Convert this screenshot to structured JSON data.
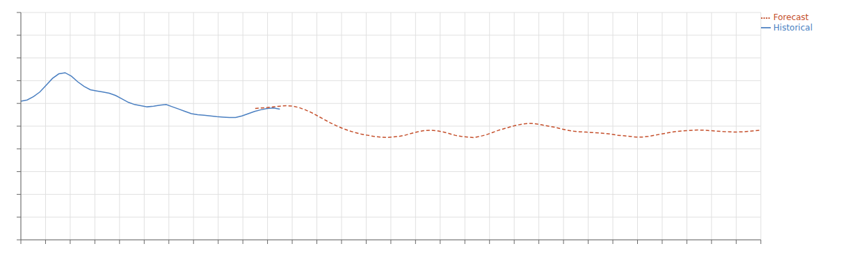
{
  "chart_data": {
    "type": "line",
    "xlim": [
      0,
      120
    ],
    "ylim": [
      0,
      10
    ],
    "xticks": [
      0,
      4,
      8,
      12,
      16,
      20,
      24,
      28,
      32,
      36,
      40,
      44,
      48,
      52,
      56,
      60,
      64,
      68,
      72,
      76,
      80,
      84,
      88,
      92,
      96,
      100,
      104,
      108,
      112,
      116,
      120
    ],
    "yticks": [
      0,
      1,
      2,
      3,
      4,
      5,
      6,
      7,
      8,
      9,
      10
    ],
    "grid": true,
    "legend": "upper right",
    "tick_labels": false,
    "series": [
      {
        "name": "Historical",
        "color": "#4a7fc1",
        "line_style": "solid",
        "x": [
          0,
          1.02439,
          2.04878,
          3.07317,
          4.09756,
          5.12195,
          6.14634,
          7.17073,
          8.19512,
          9.21951,
          10.2439,
          11.26829,
          12.29268,
          13.31707,
          14.34146,
          15.36585,
          16.39024,
          17.41463,
          18.43902,
          19.46341,
          20.4878,
          21.5122,
          22.53659,
          23.56098,
          24.58537,
          25.60976,
          26.63415,
          27.65854,
          28.68293,
          29.70732,
          30.73171,
          31.7561,
          32.78049,
          33.80488,
          34.82927,
          35.85366,
          36.87805,
          37.90244,
          38.92683,
          39.95122,
          40.97561,
          42
        ],
        "values": [
          6.1,
          6.15,
          6.3,
          6.5,
          6.8,
          7.1,
          7.3,
          7.35,
          7.2,
          6.95,
          6.75,
          6.6,
          6.55,
          6.5,
          6.45,
          6.35,
          6.2,
          6.05,
          5.95,
          5.9,
          5.85,
          5.88,
          5.92,
          5.95,
          5.85,
          5.75,
          5.65,
          5.55,
          5.5,
          5.48,
          5.45,
          5.42,
          5.4,
          5.38,
          5.38,
          5.45,
          5.55,
          5.65,
          5.72,
          5.78,
          5.8,
          5.75
        ]
      },
      {
        "name": "Forecast",
        "color": "#c44e2a",
        "line_style": "dashed",
        "x": [
          38,
          39.01235,
          40.02469,
          41.03704,
          42.04938,
          43.06173,
          44.07407,
          45.08642,
          46.09877,
          47.11111,
          48.12346,
          49.1358,
          50.14815,
          51.16049,
          52.17284,
          53.18519,
          54.19753,
          55.20988,
          56.22222,
          57.23457,
          58.24691,
          59.25926,
          60.2716,
          61.28395,
          62.2963,
          63.30864,
          64.32099,
          65.33333,
          66.34568,
          67.35802,
          68.37037,
          69.38272,
          70.39506,
          71.40741,
          72.41975,
          73.4321,
          74.44444,
          75.45679,
          76.46914,
          77.48148,
          78.49383,
          79.50617,
          80.51852,
          81.53086,
          82.54321,
          83.55556,
          84.5679,
          85.58025,
          86.59259,
          87.60494,
          88.61728,
          89.62963,
          90.64198,
          91.65432,
          92.66667,
          93.67901,
          94.69136,
          95.7037,
          96.71605,
          97.7284,
          98.74074,
          99.75309,
          100.76543,
          101.77778,
          102.79012,
          103.80247,
          104.81481,
          105.82716,
          106.83951,
          107.85185,
          108.8642,
          109.87654,
          110.88889,
          111.90123,
          112.91358,
          113.92593,
          114.93827,
          115.95062,
          116.96296,
          117.97531,
          118.98765,
          120
        ],
        "values": [
          5.78,
          5.8,
          5.82,
          5.85,
          5.88,
          5.9,
          5.88,
          5.82,
          5.72,
          5.6,
          5.45,
          5.3,
          5.15,
          5.02,
          4.9,
          4.8,
          4.72,
          4.65,
          4.6,
          4.55,
          4.52,
          4.5,
          4.52,
          4.55,
          4.6,
          4.68,
          4.75,
          4.8,
          4.82,
          4.8,
          4.75,
          4.68,
          4.6,
          4.55,
          4.52,
          4.5,
          4.55,
          4.62,
          4.72,
          4.82,
          4.9,
          4.98,
          5.05,
          5.1,
          5.12,
          5.1,
          5.05,
          5.0,
          4.95,
          4.88,
          4.82,
          4.78,
          4.75,
          4.74,
          4.72,
          4.7,
          4.68,
          4.65,
          4.6,
          4.58,
          4.55,
          4.52,
          4.52,
          4.55,
          4.6,
          4.65,
          4.7,
          4.75,
          4.78,
          4.8,
          4.82,
          4.83,
          4.82,
          4.8,
          4.78,
          4.76,
          4.75,
          4.74,
          4.75,
          4.77,
          4.8,
          4.82
        ]
      }
    ]
  }
}
